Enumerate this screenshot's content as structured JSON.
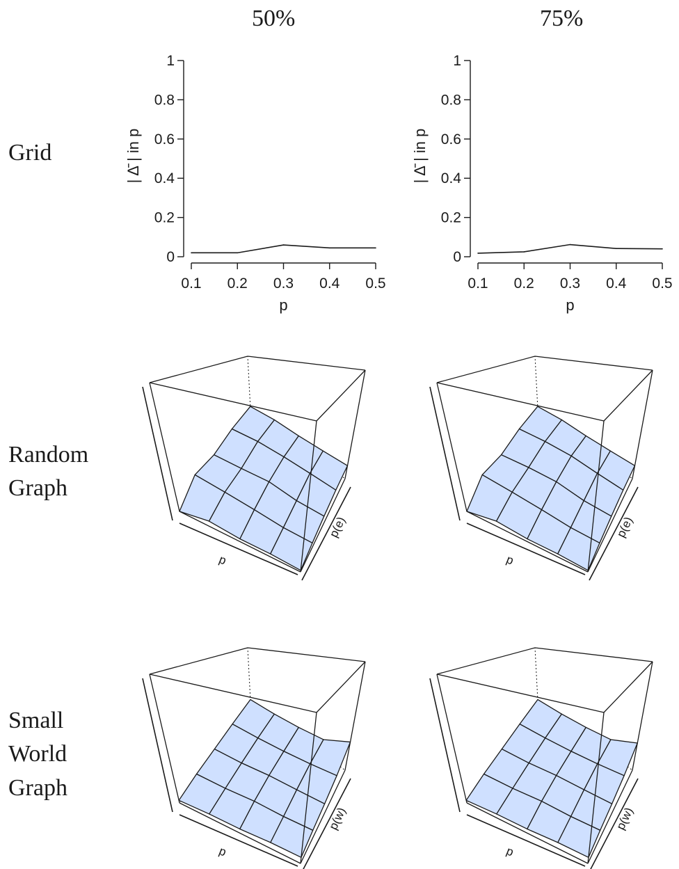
{
  "columns": [
    "50%",
    "75%"
  ],
  "rows": [
    {
      "label": "Grid"
    },
    {
      "label": "Random\nGraph"
    },
    {
      "label": "Small\nWorld\nGraph"
    }
  ],
  "styles": {
    "surface_fill": "#cfe0ff",
    "surface_stroke": "#1a1a1a",
    "box_stroke": "#1a1a1a"
  },
  "chart_data": [
    {
      "type": "line",
      "panel": "Grid / 50%",
      "x": [
        0.1,
        0.2,
        0.3,
        0.4,
        0.5
      ],
      "values": [
        0.02,
        0.02,
        0.06,
        0.045,
        0.045
      ],
      "xlabel": "p",
      "ylabel": "| Δ̄ | in p",
      "xticks": [
        "0.1",
        "0.2",
        "0.3",
        "0.4",
        "0.5"
      ],
      "yticks": [
        "0",
        "0.2",
        "0.4",
        "0.6",
        "0.8",
        "1"
      ],
      "xlim": [
        0.1,
        0.5
      ],
      "ylim": [
        0,
        1
      ]
    },
    {
      "type": "line",
      "panel": "Grid / 75%",
      "x": [
        0.1,
        0.2,
        0.3,
        0.4,
        0.5
      ],
      "values": [
        0.018,
        0.025,
        0.062,
        0.042,
        0.04
      ],
      "xlabel": "p",
      "ylabel": "| Δ̄ | in p",
      "xticks": [
        "0.1",
        "0.2",
        "0.3",
        "0.4",
        "0.5"
      ],
      "yticks": [
        "0",
        "0.2",
        "0.4",
        "0.6",
        "0.8",
        "1"
      ],
      "xlim": [
        0.1,
        0.5
      ],
      "ylim": [
        0,
        1
      ]
    },
    {
      "type": "surface",
      "panel": "Random Graph / 50%",
      "xlabel": "p",
      "ylabel": "p(e)",
      "zlim": [
        0,
        1
      ],
      "z": [
        [
          0.0,
          0.1,
          0.06,
          0.08,
          0.05
        ],
        [
          0.04,
          0.08,
          0.08,
          0.12,
          0.1
        ],
        [
          0.02,
          0.06,
          0.1,
          0.12,
          0.1
        ],
        [
          0.02,
          0.04,
          0.07,
          0.11,
          0.11
        ],
        [
          0.01,
          0.04,
          0.07,
          0.1,
          0.12
        ]
      ]
    },
    {
      "type": "surface",
      "panel": "Random Graph / 75%",
      "xlabel": "p",
      "ylabel": "p(e)",
      "zlim": [
        0,
        1
      ],
      "z": [
        [
          0.0,
          0.1,
          0.06,
          0.08,
          0.05
        ],
        [
          0.04,
          0.08,
          0.09,
          0.12,
          0.1
        ],
        [
          0.02,
          0.06,
          0.1,
          0.13,
          0.1
        ],
        [
          0.02,
          0.04,
          0.07,
          0.11,
          0.11
        ],
        [
          0.01,
          0.04,
          0.07,
          0.1,
          0.12
        ]
      ]
    },
    {
      "type": "surface",
      "panel": "Small World Graph / 50%",
      "xlabel": "p",
      "ylabel": "p(w)",
      "zlim": [
        0,
        1
      ],
      "z": [
        [
          0.02,
          0.03,
          0.03,
          0.03,
          0.02
        ],
        [
          0.03,
          0.04,
          0.05,
          0.06,
          0.06
        ],
        [
          0.03,
          0.06,
          0.08,
          0.09,
          0.1
        ],
        [
          0.04,
          0.06,
          0.09,
          0.12,
          0.14
        ],
        [
          0.04,
          0.07,
          0.1,
          0.15,
          0.26
        ]
      ]
    },
    {
      "type": "surface",
      "panel": "Small World Graph / 75%",
      "xlabel": "p",
      "ylabel": "p(w)",
      "zlim": [
        0,
        1
      ],
      "z": [
        [
          0.02,
          0.03,
          0.03,
          0.03,
          0.02
        ],
        [
          0.03,
          0.04,
          0.05,
          0.06,
          0.06
        ],
        [
          0.03,
          0.06,
          0.08,
          0.09,
          0.1
        ],
        [
          0.04,
          0.06,
          0.09,
          0.12,
          0.14
        ],
        [
          0.04,
          0.07,
          0.1,
          0.15,
          0.25
        ]
      ]
    }
  ]
}
